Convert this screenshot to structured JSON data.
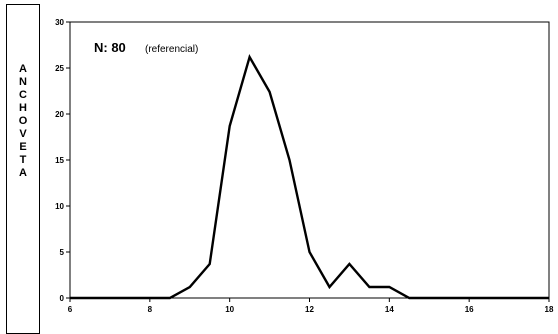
{
  "side_label": [
    "A",
    "N",
    "C",
    "H",
    "O",
    "V",
    "E",
    "T",
    "A"
  ],
  "annotation": {
    "n_label": "N: 80",
    "note": "(referencial)"
  },
  "chart_data": {
    "type": "line",
    "title": "",
    "xlabel": "",
    "ylabel": "",
    "xlim": [
      6,
      18
    ],
    "ylim": [
      0,
      30
    ],
    "xticks": [
      6,
      8,
      10,
      12,
      14,
      16,
      18
    ],
    "yticks": [
      0,
      5,
      10,
      15,
      20,
      25,
      30
    ],
    "grid": false,
    "series": [
      {
        "color": "#000000",
        "x": [
          6,
          6.5,
          7,
          7.5,
          8,
          8.5,
          9,
          9.5,
          10,
          10.5,
          11,
          11.5,
          12,
          12.5,
          13,
          13.5,
          14,
          14.5,
          15,
          15.5,
          16,
          16.5,
          17,
          17.5,
          18
        ],
        "y": [
          0,
          0,
          0,
          0,
          0,
          0,
          1.2,
          3.7,
          18.7,
          26.2,
          22.4,
          15.0,
          5.0,
          1.2,
          3.7,
          1.2,
          1.2,
          0,
          0,
          0,
          0,
          0,
          0,
          0,
          0
        ]
      }
    ]
  }
}
